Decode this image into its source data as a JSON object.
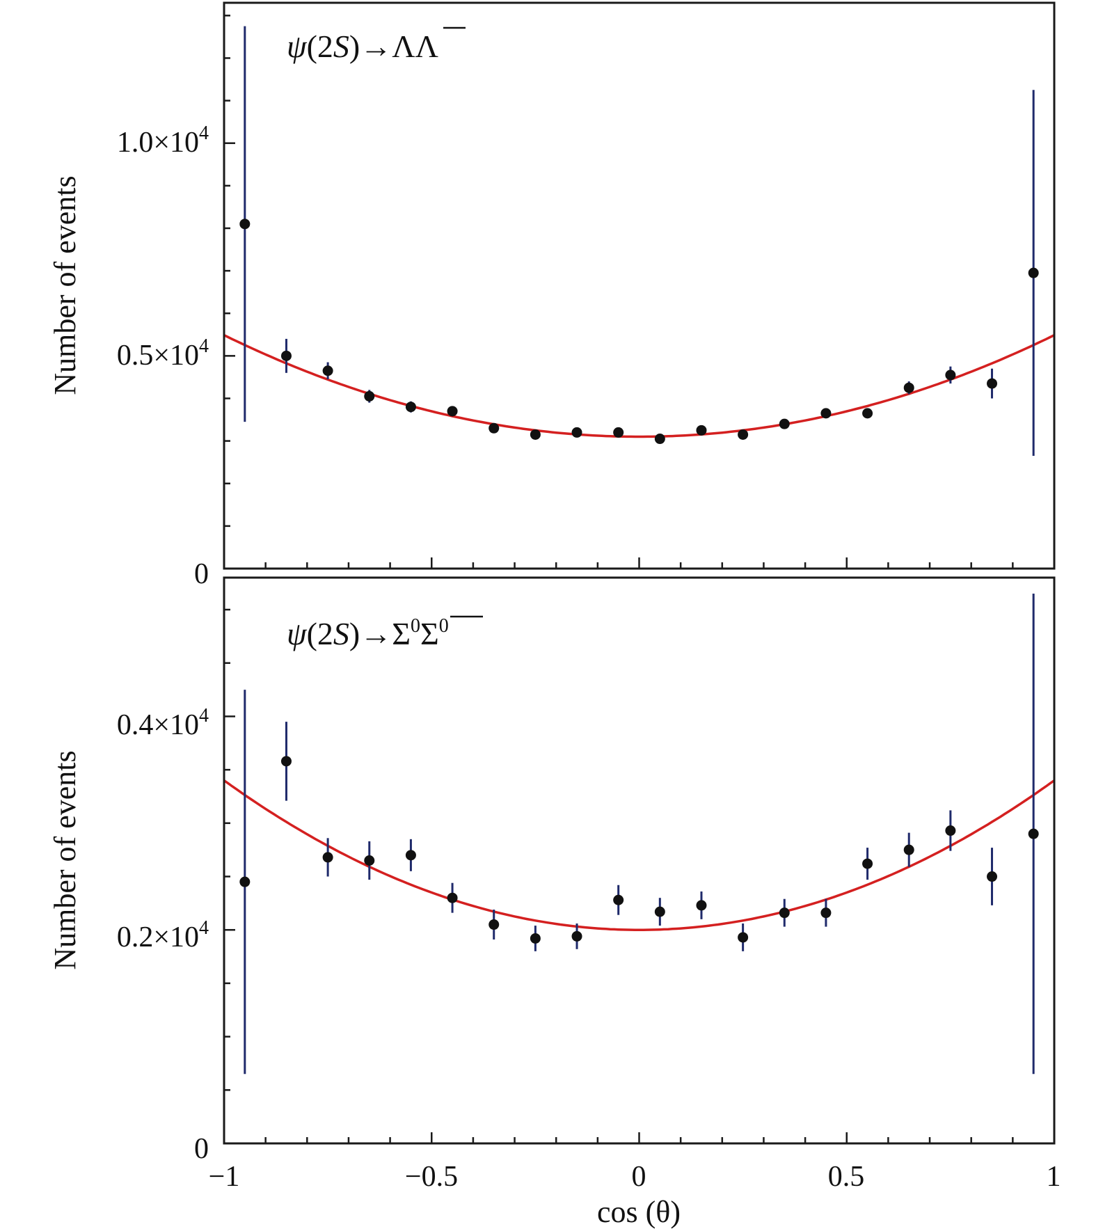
{
  "figure": {
    "xlabel": "cos (θ)",
    "x_tick_labels": [
      "−1",
      "−0.5",
      "0",
      "0.5",
      "1"
    ]
  },
  "chart_data": [
    {
      "type": "scatter",
      "panel": "top",
      "title": "",
      "annotation_parts": [
        "ψ",
        "(2",
        "S",
        ")→Λ",
        "Λ"
      ],
      "ylabel": "Number of events",
      "xlim": [
        -1,
        1
      ],
      "ylim": [
        0,
        13300
      ],
      "y_ticks": [
        0,
        5000,
        10000
      ],
      "y_tick_mantissas": [
        "0",
        "0.5×10",
        "1.0×10"
      ],
      "y_tick_exponent": "4",
      "grid": false,
      "x": [
        -0.95,
        -0.85,
        -0.75,
        -0.65,
        -0.55,
        -0.45,
        -0.35,
        -0.25,
        -0.15,
        -0.05,
        0.05,
        0.15,
        0.25,
        0.35,
        0.45,
        0.55,
        0.65,
        0.75,
        0.85,
        0.95
      ],
      "y": [
        8100,
        5000,
        4650,
        4050,
        3800,
        3700,
        3300,
        3150,
        3200,
        3200,
        3050,
        3250,
        3150,
        3400,
        3650,
        3650,
        4250,
        4550,
        4350,
        6950
      ],
      "yerr": [
        4650,
        400,
        200,
        150,
        130,
        120,
        100,
        100,
        100,
        100,
        100,
        100,
        100,
        100,
        100,
        100,
        150,
        200,
        350,
        4300
      ],
      "fit": {
        "form": "A*(1+alpha*x^2)",
        "A": 3100,
        "alpha": 0.77,
        "color": "#d42020"
      },
      "point_color": "#111111",
      "errorbar_color": "#1f2a6b"
    },
    {
      "type": "scatter",
      "panel": "bottom",
      "title": "",
      "annotation_parts": [
        "ψ",
        "(2",
        "S",
        ")→Σ",
        "0",
        "Σ",
        "0"
      ],
      "ylabel": "Number of events",
      "xlim": [
        -1,
        1
      ],
      "ylim": [
        0,
        5300
      ],
      "y_ticks": [
        0,
        2000,
        4000
      ],
      "y_tick_mantissas": [
        "0",
        "0.2×10",
        "0.4×10"
      ],
      "y_tick_exponent": "4",
      "grid": false,
      "x": [
        -0.95,
        -0.85,
        -0.75,
        -0.65,
        -0.55,
        -0.45,
        -0.35,
        -0.25,
        -0.15,
        -0.05,
        0.05,
        0.15,
        0.25,
        0.35,
        0.45,
        0.55,
        0.65,
        0.75,
        0.85,
        0.95
      ],
      "y": [
        2450,
        3580,
        2680,
        2650,
        2700,
        2300,
        2050,
        1920,
        1940,
        2280,
        2170,
        2230,
        1930,
        2160,
        2160,
        2620,
        2750,
        2930,
        2500,
        2900
      ],
      "yerr": [
        1800,
        370,
        180,
        180,
        150,
        140,
        140,
        120,
        120,
        140,
        130,
        130,
        130,
        130,
        130,
        150,
        160,
        190,
        270,
        2250
      ],
      "fit": {
        "form": "A*(1+alpha*x^2)",
        "A": 2000,
        "alpha": 0.7,
        "color": "#d42020"
      },
      "point_color": "#111111",
      "errorbar_color": "#1f2a6b"
    }
  ]
}
